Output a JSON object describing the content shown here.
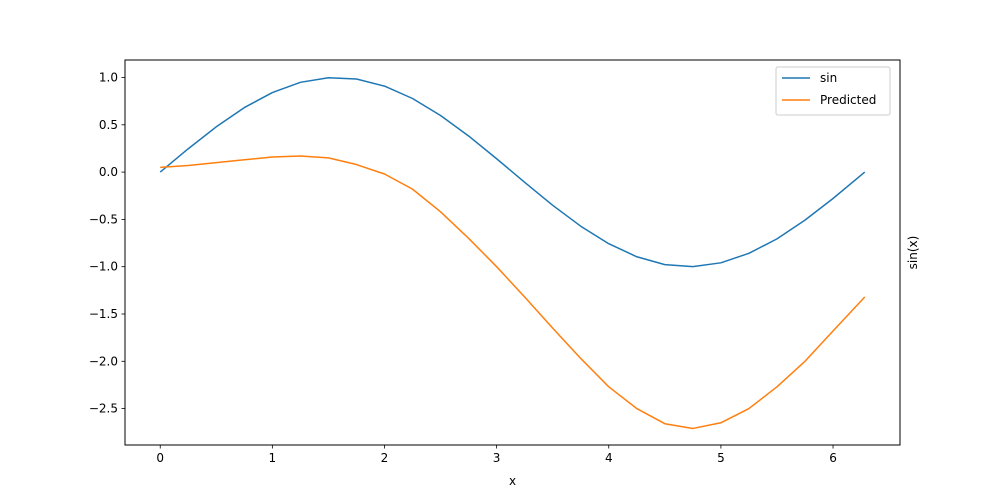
{
  "chart_data": {
    "type": "line",
    "title": "",
    "xlabel": "x",
    "ylabel": "sin(x)",
    "xlim": [
      -0.3142,
      6.5973
    ],
    "ylim": [
      -2.885,
      1.185
    ],
    "xticks": [
      0,
      1,
      2,
      3,
      4,
      5,
      6
    ],
    "yticks": [
      1.0,
      0.5,
      0.0,
      -0.5,
      -1.0,
      -1.5,
      -2.0,
      -2.5
    ],
    "grid": false,
    "legend": "top-right",
    "series": [
      {
        "name": "sin",
        "color": "#1f77b4",
        "x": [
          0,
          0.25,
          0.5,
          0.75,
          1.0,
          1.25,
          1.5,
          1.75,
          2.0,
          2.25,
          2.5,
          2.75,
          3.0,
          3.25,
          3.5,
          3.75,
          4.0,
          4.25,
          4.5,
          4.75,
          5.0,
          5.25,
          5.5,
          5.75,
          6.0,
          6.283
        ],
        "y": [
          0,
          0.247,
          0.479,
          0.682,
          0.841,
          0.949,
          0.997,
          0.984,
          0.909,
          0.778,
          0.598,
          0.382,
          0.141,
          -0.108,
          -0.351,
          -0.572,
          -0.757,
          -0.895,
          -0.978,
          -0.999,
          -0.959,
          -0.859,
          -0.706,
          -0.508,
          -0.279,
          0
        ]
      },
      {
        "name": "Predicted",
        "color": "#ff7f0e",
        "x": [
          0,
          0.25,
          0.5,
          0.75,
          1.0,
          1.25,
          1.5,
          1.75,
          2.0,
          2.25,
          2.5,
          2.75,
          3.0,
          3.25,
          3.5,
          3.75,
          4.0,
          4.25,
          4.5,
          4.75,
          5.0,
          5.25,
          5.5,
          5.75,
          6.0,
          6.283
        ],
        "y": [
          0.05,
          0.07,
          0.1,
          0.13,
          0.16,
          0.17,
          0.15,
          0.08,
          -0.02,
          -0.18,
          -0.42,
          -0.7,
          -1.0,
          -1.32,
          -1.65,
          -1.97,
          -2.27,
          -2.5,
          -2.66,
          -2.71,
          -2.65,
          -2.5,
          -2.27,
          -2.0,
          -1.68,
          -1.32
        ]
      }
    ]
  }
}
